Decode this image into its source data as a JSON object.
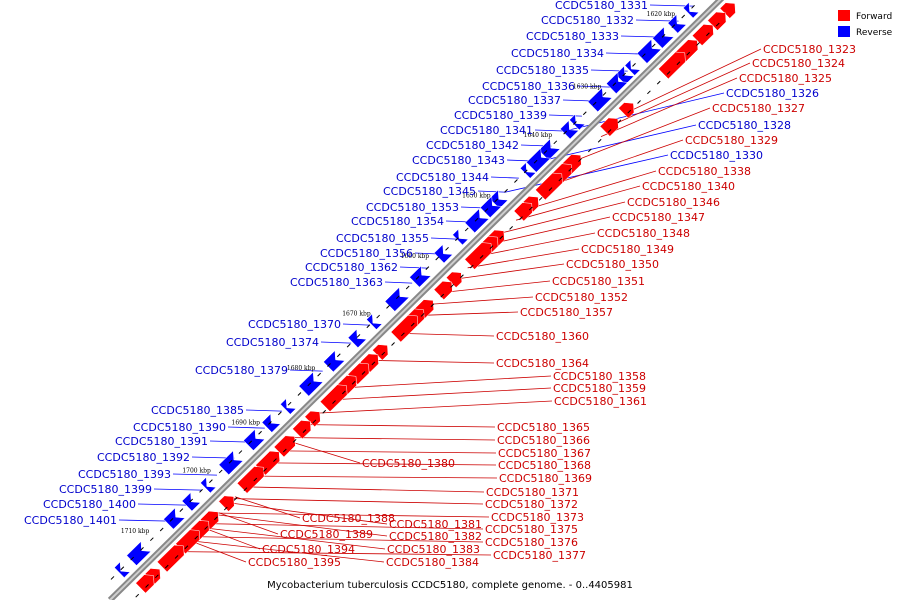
{
  "legend": {
    "items": [
      {
        "label": "Forward",
        "color": "#ff0000"
      },
      {
        "label": "Reverse",
        "color": "#0000ff"
      }
    ]
  },
  "caption": "Mycobacterium tuberculosis CCDC5180, complete genome. - 0..4405981",
  "ticks": [
    "1620 kbp",
    "1630 kbp",
    "1640 kbp",
    "1650 kbp",
    "1660 kbp",
    "1670 kbp",
    "1680 kbp",
    "1690 kbp",
    "1700 kbp",
    "1710 kbp"
  ],
  "reverse_genes": [
    "CCDC5180_1331",
    "CCDC5180_1332",
    "CCDC5180_1333",
    "CCDC5180_1334",
    "CCDC5180_1335",
    "CCDC5180_1336",
    "CCDC5180_1337",
    "CCDC5180_1339",
    "CCDC5180_1341",
    "CCDC5180_1342",
    "CCDC5180_1343",
    "CCDC5180_1344",
    "CCDC5180_1345",
    "CCDC5180_1353",
    "CCDC5180_1354",
    "CCDC5180_1355",
    "CCDC5180_1356",
    "CCDC5180_1362",
    "CCDC5180_1363",
    "CCDC5180_1370",
    "CCDC5180_1374",
    "CCDC5180_1379",
    "CCDC5180_1385",
    "CCDC5180_1390",
    "CCDC5180_1391",
    "CCDC5180_1392",
    "CCDC5180_1393",
    "CCDC5180_1399",
    "CCDC5180_1400",
    "CCDC5180_1401"
  ],
  "reverse_genes_right": [
    "CCDC5180_1326",
    "CCDC5180_1328",
    "CCDC5180_1330"
  ],
  "forward_genes": [
    "CCDC5180_1323",
    "CCDC5180_1324",
    "CCDC5180_1325",
    "CCDC5180_1327",
    "CCDC5180_1329",
    "CCDC5180_1338",
    "CCDC5180_1340",
    "CCDC5180_1346",
    "CCDC5180_1347",
    "CCDC5180_1348",
    "CCDC5180_1349",
    "CCDC5180_1350",
    "CCDC5180_1351",
    "CCDC5180_1352",
    "CCDC5180_1357",
    "CCDC5180_1360",
    "CCDC5180_1364",
    "CCDC5180_1358",
    "CCDC5180_1359",
    "CCDC5180_1361",
    "CCDC5180_1365",
    "CCDC5180_1366",
    "CCDC5180_1367",
    "CCDC5180_1368",
    "CCDC5180_1369",
    "CCDC5180_1371",
    "CCDC5180_1372",
    "CCDC5180_1373",
    "CCDC5180_1375",
    "CCDC5180_1376",
    "CCDC5180_1377"
  ],
  "forward_genes_left": [
    "CCDC5180_1380",
    "CCDC5180_1381",
    "CCDC5180_1382",
    "CCDC5180_1383",
    "CCDC5180_1384",
    "CCDC5180_1388",
    "CCDC5180_1389",
    "CCDC5180_1394",
    "CCDC5180_1395"
  ]
}
